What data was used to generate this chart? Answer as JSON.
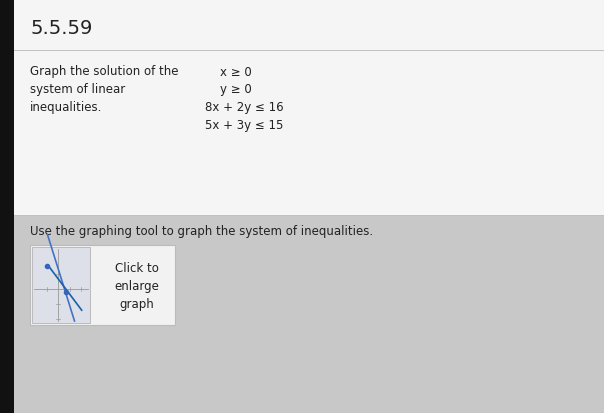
{
  "title": "5.5.59",
  "instruction_line1": "Graph the solution of the",
  "instruction_line2": "system of linear",
  "instruction_line3": "inequalities.",
  "eq1": "x ≥ 0",
  "eq2": "y ≥ 0",
  "eq3": "8x + 2y ≤ 16",
  "eq4": "5x + 3y ≤ 15",
  "tool_text": "Use the graphing tool to graph the system of inequalities.",
  "btn_line1": "Click to",
  "btn_line2": "enlarge",
  "btn_line3": "graph",
  "bg_color": "#c8c8c8",
  "title_bg": "#f5f5f5",
  "content_bg": "#eeeeee",
  "btn_bg": "#f2f2f2",
  "mini_graph_bg": "#dde0e8",
  "left_bar_color": "#111111",
  "divider_color": "#c0c0c0",
  "line_color1": "#4472c4",
  "line_color2": "#1a5fa8",
  "axis_color": "#999999",
  "dot_color": "#3366bb",
  "font_color": "#222222",
  "title_fontsize": 14,
  "body_fontsize": 8.5,
  "tool_fontsize": 8.5,
  "btn_fontsize": 8.5
}
